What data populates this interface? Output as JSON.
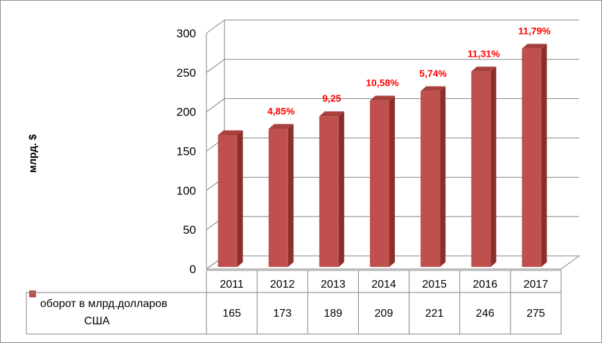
{
  "chart_data": {
    "type": "bar",
    "categories": [
      "2011",
      "2012",
      "2013",
      "2014",
      "2015",
      "2016",
      "2017"
    ],
    "series": [
      {
        "name": "оборот в  млрд.долларов США",
        "values": [
          165,
          173,
          189,
          209,
          221,
          246,
          275
        ]
      }
    ],
    "table_values": [
      "165",
      "173",
      "189",
      "209",
      "221",
      "246",
      "275"
    ],
    "annotations": [
      "",
      "4,85%",
      "9,25",
      "10,58%",
      "5,74%",
      "11,31%",
      "11,79%"
    ],
    "ylabel": "млрд. $",
    "ylim": [
      0,
      300
    ],
    "yticks": [
      "0",
      "50",
      "100",
      "150",
      "200",
      "250",
      "300"
    ],
    "legend": {
      "line1": "оборот в  млрд.долларов",
      "line2": "США"
    },
    "grid": true,
    "colors": {
      "bar_front": "#c0504d",
      "bar_side": "#8b2e2c",
      "bar_top": "#a8403d",
      "annotation": "#ff0000",
      "grid": "#808080"
    }
  }
}
